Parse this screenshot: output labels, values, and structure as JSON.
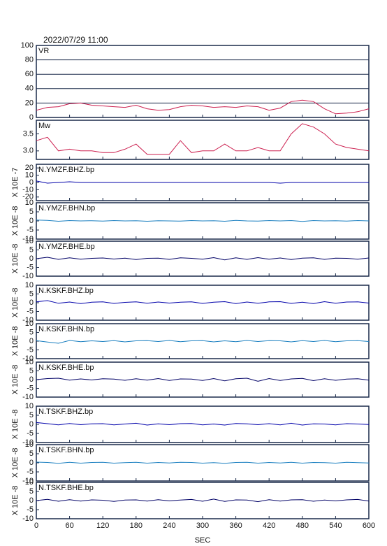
{
  "chart_data": {
    "type": "line",
    "title": "2022/07/29  11:00",
    "xlabel": "SEC",
    "x": [
      0,
      20,
      40,
      60,
      80,
      100,
      120,
      140,
      160,
      180,
      200,
      220,
      240,
      260,
      280,
      300,
      320,
      340,
      360,
      380,
      400,
      420,
      440,
      460,
      480,
      500,
      520,
      540,
      560,
      580,
      600
    ],
    "xlim": [
      0,
      600
    ],
    "xticks": [
      0,
      60,
      120,
      180,
      240,
      300,
      360,
      420,
      480,
      540,
      600
    ],
    "series": [
      {
        "name": "VR",
        "color": "#cc1f4f",
        "ylim": [
          0,
          100
        ],
        "yticks": [
          0,
          20,
          40,
          60,
          80,
          100
        ],
        "grid": true,
        "values": [
          10,
          14,
          15,
          19,
          20,
          17,
          16,
          15,
          14,
          17,
          12,
          10,
          11,
          15,
          17,
          16,
          14,
          15,
          14,
          16,
          15,
          10,
          13,
          22,
          24,
          22,
          12,
          5,
          6,
          8,
          12
        ]
      },
      {
        "name": "Mw",
        "color": "#cc1f4f",
        "ylim": [
          2.75,
          3.9
        ],
        "yticks": [
          {
            "value": 3,
            "label": "3.0"
          },
          {
            "value": 3.5,
            "label": "3.5"
          }
        ],
        "grid": false,
        "values": [
          3.3,
          3.4,
          3.0,
          3.05,
          3.0,
          3.0,
          2.95,
          2.95,
          3.05,
          3.2,
          2.9,
          2.9,
          2.9,
          3.3,
          2.95,
          3.0,
          3.0,
          3.2,
          3.0,
          3.0,
          3.1,
          3.0,
          3.0,
          3.5,
          3.8,
          3.7,
          3.5,
          3.2,
          3.1,
          3.05,
          3.0
        ]
      },
      {
        "name": "N.YMZF.BHZ.bp",
        "color": "#0000aa",
        "ylabel": "X 10E -7",
        "ylim": [
          -25,
          25
        ],
        "yticks": [
          -20,
          -10,
          0,
          10,
          20
        ],
        "grid": false,
        "values": [
          2,
          -1,
          0,
          1,
          0,
          0,
          0,
          0,
          0,
          0,
          0,
          0,
          0,
          0,
          0,
          0,
          0,
          0,
          0,
          0,
          0,
          0,
          -1,
          0,
          0,
          0,
          0,
          0,
          0,
          0,
          0
        ]
      },
      {
        "name": "N.YMZF.BHN.bp",
        "color": "#1a7fc0",
        "ylabel": "X 10E -8",
        "ylim": [
          -10,
          10
        ],
        "yticks": [
          -10,
          -5,
          0,
          5,
          10
        ],
        "grid": false,
        "values": [
          0.5,
          0.3,
          -0.2,
          0.2,
          0,
          0.1,
          -0.1,
          0.2,
          0,
          0.1,
          -0.2,
          0.1,
          0,
          -0.1,
          0.2,
          0,
          0.1,
          -0.2,
          0.3,
          0,
          -0.1,
          0.2,
          0,
          0.2,
          -0.3,
          0.2,
          0,
          0.1,
          -0.1,
          0.2,
          0
        ]
      },
      {
        "name": "N.YMZF.BHE.bp",
        "color": "#000066",
        "ylabel": "X 10E -8",
        "ylim": [
          -10,
          10
        ],
        "yticks": [
          -10,
          -5,
          0,
          5,
          10
        ],
        "grid": false,
        "values": [
          0,
          0.8,
          -0.4,
          0.5,
          -0.3,
          0.2,
          0.4,
          -0.2,
          0.3,
          -0.5,
          0.2,
          0.3,
          -0.4,
          0.5,
          0.2,
          -0.3,
          0.6,
          -0.7,
          0.5,
          -0.4,
          0.6,
          -0.3,
          0.4,
          -0.5,
          0.3,
          0.5,
          -0.4,
          0.3,
          0.2,
          -0.3,
          0.4
        ]
      },
      {
        "name": "N.KSKF.BHZ.bp",
        "color": "#0000aa",
        "ylabel": "X 10E -8",
        "ylim": [
          -10,
          10
        ],
        "yticks": [
          -10,
          -5,
          0,
          5,
          10
        ],
        "grid": false,
        "values": [
          0.5,
          1.2,
          -0.3,
          0.4,
          -0.5,
          0.3,
          0.5,
          -0.4,
          0.2,
          0.5,
          -0.3,
          0.4,
          -0.2,
          0.3,
          0.5,
          -0.4,
          0.3,
          0.6,
          -0.5,
          0.4,
          -0.3,
          0.5,
          0.6,
          -0.4,
          0.3,
          -0.5,
          0.6,
          -0.3,
          0.4,
          0.5,
          -0.2
        ]
      },
      {
        "name": "N.KSKF.BHN.bp",
        "color": "#1a7fc0",
        "ylabel": "X 10E -8",
        "ylim": [
          -10,
          10
        ],
        "yticks": [
          -10,
          -5,
          0,
          5,
          10
        ],
        "grid": false,
        "values": [
          0.3,
          -0.5,
          -1.2,
          0.4,
          -0.3,
          0.2,
          -0.2,
          0.3,
          -0.4,
          0.2,
          0.3,
          -0.2,
          0.4,
          -0.3,
          0.2,
          0.3,
          -0.4,
          0.2,
          -0.3,
          0.4,
          -0.2,
          0.3,
          0.2,
          -0.4,
          0.3,
          -0.2,
          0.4,
          -0.3,
          0.2,
          0.3,
          -0.2
        ]
      },
      {
        "name": "N.KSKF.BHE.bp",
        "color": "#000066",
        "ylabel": "X 10E -8",
        "ylim": [
          -10,
          10
        ],
        "yticks": [
          -10,
          -5,
          0,
          5,
          10
        ],
        "grid": false,
        "values": [
          0,
          0.6,
          0.8,
          -0.3,
          0.4,
          -0.2,
          0.5,
          0.3,
          -0.4,
          0.5,
          -0.3,
          0.6,
          -0.5,
          0.4,
          0.3,
          -0.5,
          0.6,
          -0.7,
          0.5,
          0.8,
          -0.9,
          0.6,
          -0.5,
          0.4,
          0.7,
          -0.6,
          0.5,
          -0.4,
          0.3,
          0.5,
          -0.3
        ]
      },
      {
        "name": "N.TSKF.BHZ.bp",
        "color": "#0000aa",
        "ylabel": "X 10E -8",
        "ylim": [
          -10,
          10
        ],
        "yticks": [
          -10,
          -5,
          0,
          5,
          10
        ],
        "grid": false,
        "values": [
          1,
          0.4,
          -0.3,
          0.5,
          -0.2,
          0.3,
          0.4,
          -0.3,
          0.2,
          0.6,
          -0.4,
          0.3,
          -0.2,
          0.4,
          0.5,
          -0.3,
          0.2,
          -0.4,
          0.5,
          0.3,
          -0.2,
          0.4,
          -0.3,
          0.6,
          -0.4,
          0.3,
          0.2,
          -0.3,
          0.4,
          0.2,
          -0.1
        ]
      },
      {
        "name": "N.TSKF.BHN.bp",
        "color": "#1a7fc0",
        "ylabel": "X 10E -8",
        "ylim": [
          -10,
          10
        ],
        "yticks": [
          -10,
          -5,
          0,
          5,
          10
        ],
        "grid": false,
        "values": [
          0.4,
          0.2,
          -0.3,
          0.3,
          -0.2,
          0.2,
          0.3,
          -0.2,
          0.1,
          0.3,
          -0.2,
          0.2,
          -0.1,
          0.3,
          0.2,
          -0.2,
          0.1,
          -0.3,
          0.2,
          0.3,
          -0.2,
          0.2,
          -0.1,
          0.3,
          -0.2,
          0.2,
          0.1,
          -0.2,
          0.3,
          0.1,
          -0.1
        ]
      },
      {
        "name": "N.TSKF.BHE.bp",
        "color": "#000066",
        "ylabel": "X 10E -8",
        "ylim": [
          -10,
          10
        ],
        "yticks": [
          -10,
          -5,
          0,
          5,
          10
        ],
        "grid": false,
        "values": [
          0,
          0.7,
          -0.4,
          0.5,
          -0.3,
          0.4,
          0.2,
          -0.5,
          0.3,
          0.4,
          -0.3,
          0.5,
          -0.2,
          0.3,
          0.6,
          -0.4,
          0.8,
          -0.5,
          0.4,
          0.3,
          -0.6,
          0.5,
          -0.3,
          0.4,
          0.5,
          -0.4,
          0.3,
          -0.2,
          0.4,
          0.6,
          -0.3
        ]
      }
    ]
  }
}
